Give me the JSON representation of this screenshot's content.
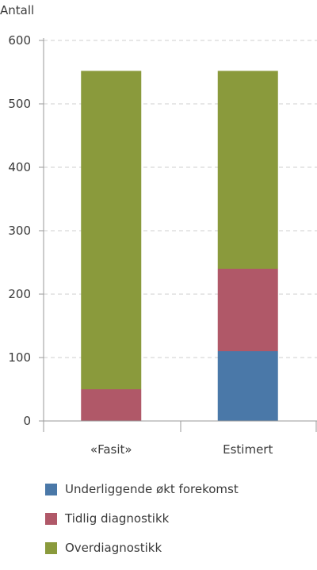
{
  "chart_data": {
    "type": "bar",
    "stacked": true,
    "ylabel": "Antall",
    "ylim": [
      0,
      600
    ],
    "yticks": [
      0,
      100,
      200,
      300,
      400,
      500,
      600
    ],
    "grid": true,
    "legend_position": "bottom",
    "categories": [
      "«Fasit»",
      "Estimert"
    ],
    "series": [
      {
        "name": "Underliggende økt forekomst",
        "color": "#4a78a8",
        "values": [
          0,
          110
        ]
      },
      {
        "name": "Tidlig diagnostikk",
        "color": "#b05868",
        "values": [
          50,
          130
        ]
      },
      {
        "name": "Overdiagnostikk",
        "color": "#8a9a3c",
        "values": [
          502,
          312
        ]
      }
    ]
  }
}
